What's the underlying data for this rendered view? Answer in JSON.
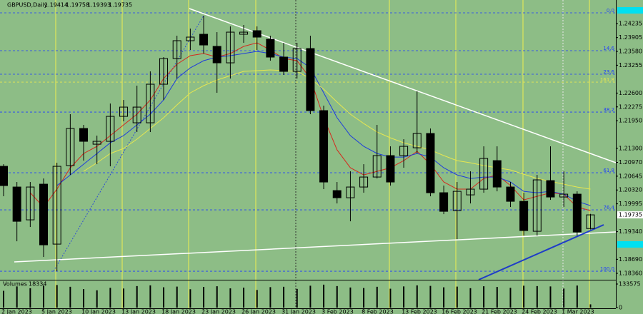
{
  "chart_data": {
    "type": "candlestick",
    "title": "GBPUSD,Daily",
    "categories": [
      "2 Jan 2023",
      null,
      null,
      "5 Jan 2023",
      null,
      null,
      "10 Jan 2023",
      null,
      null,
      "13 Jan 2023",
      null,
      null,
      "18 Jan 2023",
      null,
      null,
      "23 Jan 2023",
      null,
      null,
      "26 Jan 2023",
      null,
      null,
      "31 Jan 2023",
      null,
      null,
      "3 Feb 2023",
      null,
      null,
      "8 Feb 2023",
      null,
      null,
      "13 Feb 2023",
      null,
      null,
      "16 Feb 2023",
      null,
      null,
      "21 Feb 2023",
      null,
      null,
      "24 Feb 2023",
      null,
      null,
      "1 Mar 2023",
      null,
      null
    ],
    "open": [
      1.20877,
      1.2039,
      1.19618,
      1.20457,
      1.19047,
      1.20894,
      1.21767,
      1.21397,
      1.21465,
      1.22052,
      1.21901,
      1.21901,
      1.22808,
      1.23412,
      1.23832,
      1.23983,
      1.23698,
      1.23311,
      1.23983,
      1.24067,
      1.23866,
      1.23446,
      1.2311,
      1.23647,
      1.22187,
      1.20306,
      1.20138,
      1.2039,
      1.20625,
      1.21129,
      1.21129,
      1.21313,
      1.21649,
      1.20256,
      1.19836,
      1.20205,
      1.2034,
      1.21011,
      1.2039,
      1.20054,
      1.19349,
      1.20541,
      1.20155,
      1.20222,
      1.19414
    ],
    "high": [
      1.20927,
      1.20508,
      1.20508,
      1.20591,
      1.20961,
      1.22103,
      1.21851,
      1.21599,
      1.22354,
      1.22438,
      1.22774,
      1.2311,
      1.23446,
      1.23949,
      1.24117,
      1.2442,
      1.24033,
      1.24168,
      1.24201,
      1.24168,
      1.23949,
      1.23782,
      1.23782,
      1.23949,
      1.22304,
      1.20508,
      1.20759,
      1.20927,
      1.21851,
      1.21347,
      1.21515,
      1.2264,
      1.21767,
      1.20424,
      1.20508,
      1.20759,
      1.21347,
      1.21347,
      1.20508,
      1.20256,
      1.20675,
      1.21347,
      1.20759,
      1.20289,
      1.19758
    ],
    "low": [
      1.20172,
      1.19114,
      1.1945,
      1.18745,
      1.18409,
      1.20675,
      1.21011,
      1.20927,
      1.20877,
      1.21935,
      1.21683,
      1.21683,
      1.22438,
      1.22942,
      1.23614,
      1.2353,
      1.22606,
      1.22942,
      1.23782,
      1.23614,
      1.23362,
      1.23026,
      1.22942,
      1.22103,
      1.2034,
      1.20004,
      1.19584,
      1.20256,
      1.20591,
      1.20424,
      1.20843,
      1.21179,
      1.20172,
      1.19752,
      1.19164,
      1.20004,
      1.20256,
      1.20289,
      1.1992,
      1.19248,
      1.19248,
      1.20088,
      1.1992,
      1.19248,
      1.19393
    ],
    "close": [
      1.20424,
      1.19584,
      1.2039,
      1.1903,
      1.20877,
      1.21767,
      1.21465,
      1.21465,
      1.22052,
      1.2227,
      1.2227,
      1.22808,
      1.23412,
      1.23832,
      1.23916,
      1.23731,
      1.23311,
      1.24033,
      1.24033,
      1.23916,
      1.23446,
      1.2311,
      1.23647,
      1.22187,
      1.20508,
      1.20138,
      1.2039,
      1.20625,
      1.21129,
      1.20508,
      1.21347,
      1.21649,
      1.20256,
      1.19819,
      1.20289,
      1.2034,
      1.21062,
      1.2039,
      1.20054,
      1.19366,
      1.20558,
      1.20155,
      1.20222,
      1.19333,
      1.19735
    ],
    "up_fill": "none",
    "down_fill": "#000000",
    "wick_color": "#000000",
    "ylim": [
      1.18209,
      1.24789
    ],
    "yticks": [
      1.24235,
      1.23905,
      {
        "value": 1.2358,
        "label": "1.23580"
      },
      1.23255,
      {
        "value": 1.226,
        "label": "1.22600"
      },
      1.22275,
      {
        "value": 1.2195,
        "label": "1.21950"
      },
      {
        "value": 1.213,
        "label": "1.21300"
      },
      {
        "value": 1.2097,
        "label": "1.20970"
      },
      1.20645,
      {
        "value": 1.2032,
        "label": "1.20320"
      },
      1.19995,
      {
        "value": 1.1934,
        "label": "1.19340"
      },
      {
        "value": 1.1869,
        "label": "1.18690"
      },
      {
        "value": 1.1836,
        "label": "1.18360"
      }
    ],
    "lines": [
      {
        "color": "#d42a1e",
        "values": [
          null,
          null,
          1.20256,
          1.1992,
          1.2034,
          1.20843,
          1.21179,
          1.21347,
          1.21599,
          1.21851,
          1.22103,
          1.22438,
          1.22942,
          1.23278,
          1.23479,
          1.2353,
          1.23446,
          1.2353,
          1.23698,
          1.23782,
          1.23614,
          1.23412,
          1.23362,
          1.22942,
          1.22019,
          1.21263,
          1.20843,
          1.20675,
          1.20759,
          1.20843,
          1.21011,
          1.2123,
          1.20927,
          1.20508,
          1.2034,
          1.2034,
          1.20591,
          1.20675,
          1.20424,
          1.20088,
          1.20172,
          1.20256,
          1.20222,
          1.1992,
          1.19836
        ]
      },
      {
        "color": "#1e3cdc",
        "values": [
          null,
          null,
          null,
          null,
          1.20424,
          1.20675,
          1.20927,
          1.21179,
          1.21431,
          1.21599,
          1.21851,
          1.22103,
          1.22438,
          1.22942,
          1.23194,
          1.23362,
          1.23446,
          1.23479,
          1.2353,
          1.2358,
          1.2353,
          1.23446,
          1.23412,
          1.23194,
          1.22606,
          1.22019,
          1.21599,
          1.21347,
          1.21179,
          1.21095,
          1.21095,
          1.21179,
          1.21095,
          1.20843,
          1.20675,
          1.20591,
          1.20625,
          1.20625,
          1.20508,
          1.20289,
          1.20256,
          1.20289,
          1.20222,
          1.20054,
          1.19953
        ]
      },
      {
        "color": "#e6e650",
        "values": [
          null,
          null,
          null,
          null,
          null,
          null,
          1.20759,
          1.20961,
          1.21179,
          1.21297,
          1.21515,
          1.21767,
          1.22019,
          1.22321,
          1.22606,
          1.22774,
          1.22908,
          1.23009,
          1.2311,
          1.23127,
          1.23144,
          1.23127,
          1.2311,
          1.22942,
          1.2269,
          1.22388,
          1.22103,
          1.21884,
          1.21683,
          1.21548,
          1.21431,
          1.21347,
          1.21263,
          1.21129,
          1.21011,
          1.20961,
          1.20894,
          1.20843,
          1.20793,
          1.20692,
          1.20591,
          1.20524,
          1.20457,
          1.2039,
          1.2034
        ]
      }
    ],
    "fib_levels": [
      {
        "label": "0.0",
        "price": 1.24487,
        "color": "#1e3cff"
      },
      {
        "label": "14.6",
        "price": 1.23597,
        "color": "#1e3cff"
      },
      {
        "label": "23.6",
        "price": 1.23043,
        "color": "#1e3cff"
      },
      {
        "label": "161.8",
        "price": 1.22858,
        "color": "#e6e650"
      },
      {
        "label": "38.2",
        "price": 1.22153,
        "color": "#1e3cff"
      },
      {
        "label": "61.8",
        "price": 1.20726,
        "color": "#1e3cff"
      },
      {
        "label": "76.4",
        "price": 1.19853,
        "color": "#1e3cff"
      },
      {
        "label": "100.0",
        "price": 1.18409,
        "color": "#1e3cff"
      }
    ],
    "volume": {
      "label": "Volumes",
      "color": "#000000",
      "values": [
        95000,
        120000,
        110000,
        125000,
        128000,
        118000,
        105000,
        98000,
        112000,
        108000,
        122000,
        126000,
        115000,
        119000,
        104000,
        117000,
        121000,
        109000,
        113000,
        100000,
        116000,
        118000,
        106000,
        124000,
        130000,
        122000,
        114000,
        111000,
        118000,
        107000,
        120000,
        126000,
        123000,
        115000,
        119000,
        110000,
        121000,
        117000,
        112000,
        124000,
        122000,
        120000,
        108000,
        125000,
        18334
      ],
      "ylim": [
        0,
        133575
      ],
      "yticks": [
        133575,
        0
      ]
    }
  }
}
